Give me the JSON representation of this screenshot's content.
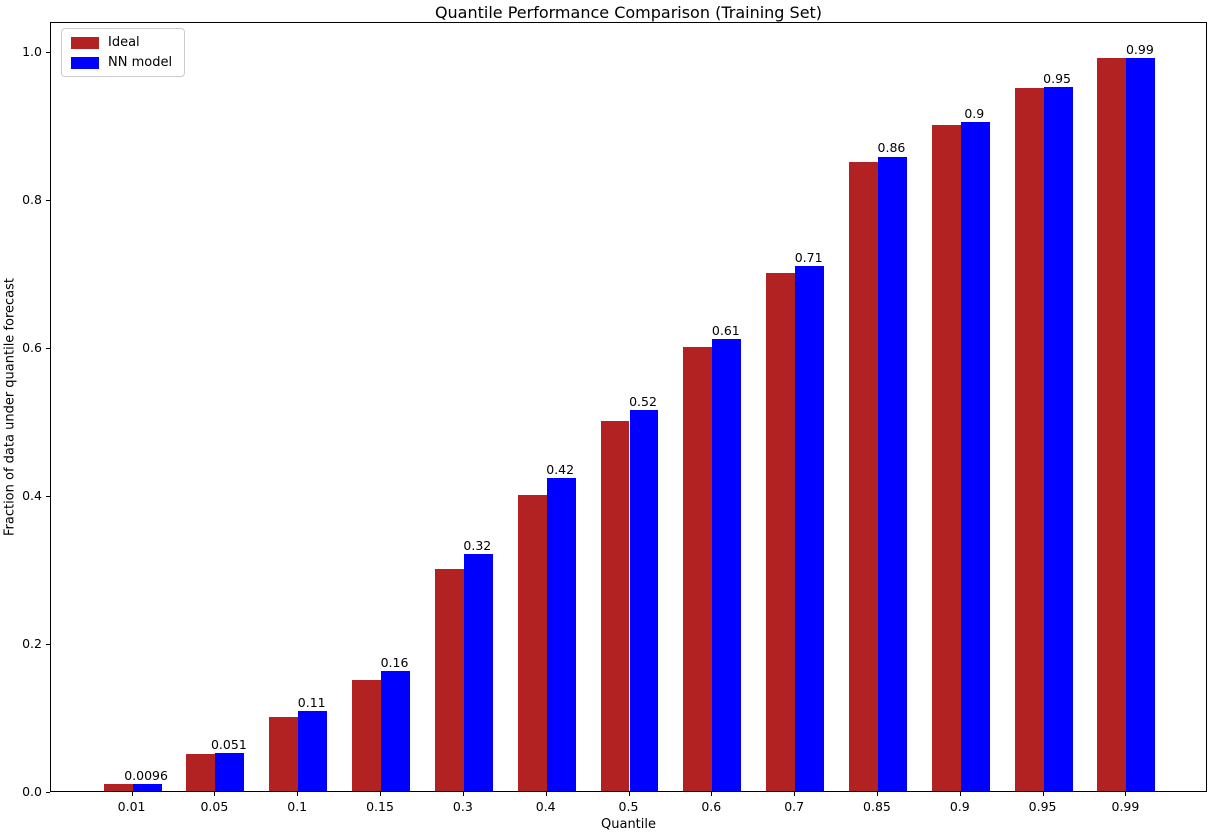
{
  "chart_data": {
    "type": "bar",
    "title": "Quantile Performance Comparison (Training Set)",
    "xlabel": "Quantile",
    "ylabel": "Fraction of data under quantile forecast",
    "categories": [
      "0.01",
      "0.05",
      "0.1",
      "0.15",
      "0.3",
      "0.4",
      "0.5",
      "0.6",
      "0.7",
      "0.85",
      "0.9",
      "0.95",
      "0.99"
    ],
    "series": [
      {
        "name": "Ideal",
        "color": "#b22222",
        "values": [
          0.01,
          0.05,
          0.1,
          0.15,
          0.3,
          0.4,
          0.5,
          0.6,
          0.7,
          0.85,
          0.9,
          0.95,
          0.99
        ]
      },
      {
        "name": "NN model",
        "color": "#0000ff",
        "values": [
          0.0096,
          0.051,
          0.108,
          0.162,
          0.32,
          0.423,
          0.515,
          0.611,
          0.709,
          0.857,
          0.903,
          0.951,
          0.99
        ]
      }
    ],
    "bar_labels": [
      "0.0096",
      "0.051",
      "0.11",
      "0.16",
      "0.32",
      "0.42",
      "0.52",
      "0.61",
      "0.71",
      "0.86",
      "0.9",
      "0.95",
      "0.99"
    ],
    "yticks": [
      0.0,
      0.2,
      0.4,
      0.6,
      0.8,
      1.0
    ],
    "ytick_labels": [
      "0.0",
      "0.2",
      "0.4",
      "0.6",
      "0.8",
      "1.0"
    ],
    "ylim": [
      0,
      1.04
    ],
    "grid": false,
    "legend_position": "upper-left",
    "background_color": "#ffffff",
    "text_color": "#000000"
  }
}
